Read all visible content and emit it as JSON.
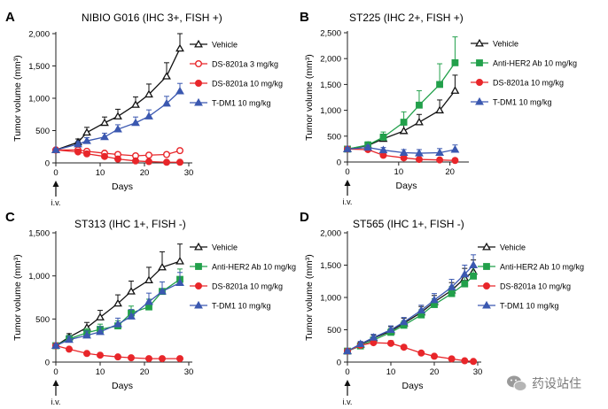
{
  "panels": [
    {
      "letter": "A",
      "title": "NIBIO G016 (IHC 3+, FISH +)",
      "xlabel": "Days",
      "ylabel": "Tumor volume (mm³)",
      "yticks": [
        "0",
        "500",
        "1,000",
        "1,500",
        "2,000"
      ],
      "ylim": [
        0,
        2000
      ],
      "xticks": [
        "0",
        "10",
        "20",
        "30"
      ],
      "xlim": [
        0,
        30
      ],
      "dose_marker": "i.v.",
      "series": [
        {
          "name": "Vehicle",
          "marker": "triangle",
          "fill": "open",
          "color": "#111111",
          "x": [
            0,
            5,
            7,
            11,
            14,
            18,
            21,
            25,
            28
          ],
          "y": [
            200,
            320,
            470,
            620,
            720,
            900,
            1060,
            1340,
            1770
          ],
          "err": [
            30,
            50,
            80,
            90,
            110,
            120,
            160,
            210,
            230
          ]
        },
        {
          "name": "DS-8201a 3 mg/kg",
          "marker": "circle",
          "fill": "open",
          "color": "#e8262a",
          "x": [
            0,
            5,
            7,
            11,
            14,
            18,
            21,
            25,
            28
          ],
          "y": [
            200,
            200,
            180,
            150,
            130,
            110,
            120,
            130,
            190
          ],
          "err": [
            20,
            20,
            20,
            20,
            20,
            20,
            20,
            20,
            20
          ]
        },
        {
          "name": "DS-8201a 10 mg/kg",
          "marker": "circle",
          "fill": "solid",
          "color": "#e8262a",
          "x": [
            0,
            5,
            7,
            11,
            14,
            18,
            21,
            25,
            28
          ],
          "y": [
            200,
            170,
            140,
            100,
            60,
            30,
            20,
            10,
            10
          ],
          "err": [
            20,
            20,
            20,
            15,
            10,
            10,
            5,
            5,
            5
          ]
        },
        {
          "name": "T-DM1 10 mg/kg",
          "marker": "triangle",
          "fill": "solid",
          "color": "#3b58b0",
          "x": [
            0,
            5,
            7,
            11,
            14,
            18,
            21,
            25,
            28
          ],
          "y": [
            200,
            290,
            340,
            400,
            520,
            620,
            720,
            920,
            1110
          ],
          "err": [
            20,
            40,
            50,
            60,
            70,
            90,
            100,
            110,
            120
          ]
        }
      ]
    },
    {
      "letter": "B",
      "title": "ST225 (IHC 2+, FISH +)",
      "xlabel": "Days",
      "ylabel": "Tumor volume (mm³)",
      "yticks": [
        "0",
        "500",
        "1,000",
        "1,500",
        "2,000",
        "2,500"
      ],
      "ylim": [
        0,
        2500
      ],
      "xticks": [
        "0",
        "10",
        "20"
      ],
      "xlim": [
        0,
        23
      ],
      "dose_marker": "i.v.",
      "series": [
        {
          "name": "Vehicle",
          "marker": "triangle",
          "fill": "open",
          "color": "#111111",
          "x": [
            0,
            4,
            7,
            11,
            14,
            18,
            21
          ],
          "y": [
            250,
            320,
            450,
            600,
            770,
            1000,
            1380
          ],
          "err": [
            40,
            60,
            90,
            120,
            150,
            200,
            300
          ]
        },
        {
          "name": "Anti-HER2 Ab 10 mg/kg",
          "marker": "square",
          "fill": "solid",
          "color": "#22a04b",
          "x": [
            0,
            4,
            7,
            11,
            14,
            18,
            21
          ],
          "y": [
            250,
            330,
            480,
            770,
            1100,
            1500,
            1920
          ],
          "err": [
            40,
            60,
            100,
            200,
            280,
            400,
            500
          ]
        },
        {
          "name": "DS-8201a 10 mg/kg",
          "marker": "circle",
          "fill": "solid",
          "color": "#e8262a",
          "x": [
            0,
            4,
            7,
            11,
            14,
            18,
            21
          ],
          "y": [
            250,
            240,
            130,
            80,
            50,
            40,
            30
          ],
          "err": [
            30,
            30,
            20,
            15,
            10,
            10,
            10
          ]
        },
        {
          "name": "T-DM1 10 mg/kg",
          "marker": "triangle",
          "fill": "solid",
          "color": "#3b58b0",
          "x": [
            0,
            4,
            7,
            11,
            14,
            18,
            21
          ],
          "y": [
            250,
            280,
            230,
            180,
            170,
            180,
            240
          ],
          "err": [
            30,
            40,
            50,
            60,
            70,
            80,
            90
          ]
        }
      ]
    },
    {
      "letter": "C",
      "title": "ST313 (IHC 1+, FISH -)",
      "xlabel": "Days",
      "ylabel": "Tumor volume (mm³)",
      "yticks": [
        "0",
        "500",
        "1,000",
        "1,500"
      ],
      "ylim": [
        0,
        1500
      ],
      "xticks": [
        "0",
        "10",
        "20",
        "30"
      ],
      "xlim": [
        0,
        30
      ],
      "dose_marker": "i.v.",
      "series": [
        {
          "name": "Vehicle",
          "marker": "triangle",
          "fill": "open",
          "color": "#111111",
          "x": [
            0,
            3,
            7,
            10,
            14,
            17,
            21,
            24,
            28
          ],
          "y": [
            190,
            290,
            400,
            520,
            680,
            820,
            950,
            1100,
            1170
          ],
          "err": [
            20,
            40,
            60,
            80,
            100,
            120,
            150,
            180,
            200
          ]
        },
        {
          "name": "Anti-HER2 Ab 10 mg/kg",
          "marker": "square",
          "fill": "solid",
          "color": "#22a04b",
          "x": [
            0,
            3,
            7,
            10,
            14,
            17,
            21,
            24,
            28
          ],
          "y": [
            190,
            270,
            340,
            380,
            420,
            570,
            640,
            820,
            960
          ],
          "err": [
            20,
            40,
            50,
            60,
            60,
            80,
            90,
            110,
            120
          ]
        },
        {
          "name": "DS-8201a 10 mg/kg",
          "marker": "circle",
          "fill": "solid",
          "color": "#e8262a",
          "x": [
            0,
            3,
            7,
            10,
            14,
            17,
            21,
            24,
            28
          ],
          "y": [
            190,
            150,
            100,
            80,
            60,
            50,
            40,
            40,
            40
          ],
          "err": [
            20,
            15,
            10,
            10,
            10,
            8,
            8,
            8,
            8
          ]
        },
        {
          "name": "T-DM1 10 mg/kg",
          "marker": "triangle",
          "fill": "solid",
          "color": "#3b58b0",
          "x": [
            0,
            3,
            7,
            10,
            14,
            17,
            21,
            24,
            28
          ],
          "y": [
            190,
            260,
            310,
            350,
            440,
            530,
            700,
            820,
            920
          ],
          "err": [
            20,
            40,
            50,
            60,
            70,
            80,
            100,
            110,
            120
          ]
        }
      ]
    },
    {
      "letter": "D",
      "title": "ST565 (IHC 1+, FISH -)",
      "xlabel": "Days",
      "ylabel": "Tumor volume (mm³)",
      "yticks": [
        "0",
        "500",
        "1,000",
        "1,500",
        "2,000"
      ],
      "ylim": [
        0,
        2000
      ],
      "xticks": [
        "0",
        "10",
        "20",
        "30"
      ],
      "xlim": [
        0,
        30
      ],
      "dose_marker": "i.v.",
      "series": [
        {
          "name": "Vehicle",
          "marker": "triangle",
          "fill": "open",
          "color": "#111111",
          "x": [
            0,
            3,
            6,
            10,
            13,
            17,
            20,
            24,
            27,
            29
          ],
          "y": [
            170,
            270,
            370,
            480,
            600,
            770,
            930,
            1110,
            1300,
            1400
          ],
          "err": [
            20,
            40,
            50,
            70,
            80,
            90,
            100,
            120,
            150,
            180
          ]
        },
        {
          "name": "Anti-HER2 Ab 10 mg/kg",
          "marker": "square",
          "fill": "solid",
          "color": "#22a04b",
          "x": [
            0,
            3,
            6,
            10,
            13,
            17,
            20,
            24,
            27,
            29
          ],
          "y": [
            170,
            250,
            340,
            460,
            570,
            730,
            890,
            1060,
            1210,
            1330
          ],
          "err": [
            20,
            40,
            50,
            60,
            70,
            80,
            90,
            110,
            120,
            140
          ]
        },
        {
          "name": "DS-8201a 10 mg/kg",
          "marker": "circle",
          "fill": "solid",
          "color": "#e8262a",
          "x": [
            0,
            3,
            6,
            10,
            13,
            17,
            20,
            24,
            27,
            29
          ],
          "y": [
            170,
            260,
            300,
            290,
            230,
            140,
            90,
            50,
            20,
            10
          ],
          "err": [
            20,
            30,
            40,
            40,
            30,
            20,
            15,
            10,
            5,
            5
          ]
        },
        {
          "name": "T-DM1 10 mg/kg",
          "marker": "triangle",
          "fill": "solid",
          "color": "#3b58b0",
          "x": [
            0,
            3,
            6,
            10,
            13,
            17,
            20,
            24,
            27,
            29
          ],
          "y": [
            170,
            280,
            380,
            500,
            620,
            800,
            960,
            1160,
            1360,
            1500
          ],
          "err": [
            20,
            40,
            50,
            60,
            70,
            80,
            100,
            120,
            140,
            160
          ]
        }
      ]
    }
  ],
  "watermark": {
    "text": "药设站住",
    "icon": "wechat-logo-icon"
  }
}
